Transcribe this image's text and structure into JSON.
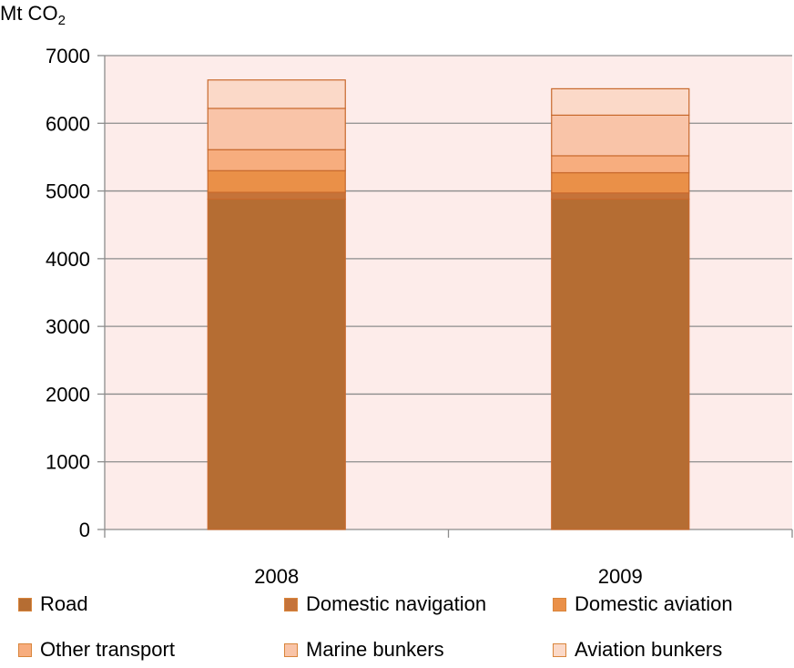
{
  "chart_data": {
    "type": "bar",
    "stacked": true,
    "ylabel": "Mt CO",
    "ylabel_subscript": "2",
    "categories": [
      "2008",
      "2009"
    ],
    "ylim": [
      0,
      7000
    ],
    "yticks": [
      0,
      1000,
      2000,
      3000,
      4000,
      5000,
      6000,
      7000
    ],
    "grid": true,
    "legend_position": "bottom",
    "series": [
      {
        "name": "Road",
        "values": [
          4880,
          4880
        ],
        "color": "#b56d33"
      },
      {
        "name": "Domestic navigation",
        "values": [
          100,
          90
        ],
        "color": "#c5733a"
      },
      {
        "name": "Domestic aviation",
        "values": [
          320,
          300
        ],
        "color": "#ea9048"
      },
      {
        "name": "Other transport",
        "values": [
          310,
          250
        ],
        "color": "#f7ad7e"
      },
      {
        "name": "Marine bunkers",
        "values": [
          610,
          600
        ],
        "color": "#f9c4a8"
      },
      {
        "name": "Aviation bunkers",
        "values": [
          420,
          390
        ],
        "color": "#fbd9c8"
      }
    ],
    "plot_background": "#fdecea",
    "bar_border_color": "#c8692d"
  }
}
